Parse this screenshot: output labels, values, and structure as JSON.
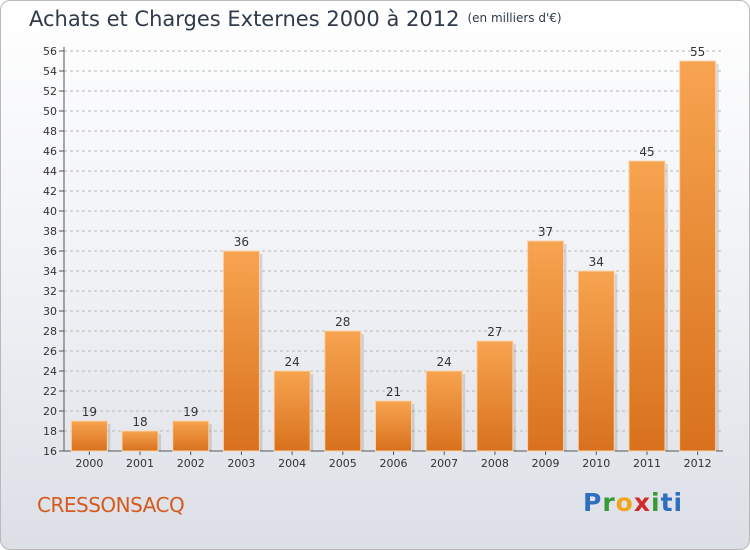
{
  "header": {
    "title": "Achats et Charges Externes 2000 à 2012",
    "subtitle": "(en milliers d'€)"
  },
  "footer": {
    "place": "CRESSONSACQ",
    "brand": [
      "P",
      "r",
      "o",
      "x",
      "i",
      "t",
      "i"
    ]
  },
  "colors": {
    "bar_top": "#f7a450",
    "bar_bottom": "#d8711d",
    "grid": "#b8b8b8",
    "title": "#2f3b4a",
    "place": "#d55a1c"
  },
  "chart_data": {
    "type": "bar",
    "title": "Achats et Charges Externes 2000 à 2012",
    "subtitle": "(en milliers d'€)",
    "xlabel": "",
    "ylabel": "",
    "categories": [
      "2000",
      "2001",
      "2002",
      "2003",
      "2004",
      "2005",
      "2006",
      "2007",
      "2008",
      "2009",
      "2010",
      "2011",
      "2012"
    ],
    "values": [
      19,
      18,
      19,
      36,
      24,
      28,
      21,
      24,
      27,
      37,
      34,
      45,
      55
    ],
    "ylim": [
      16,
      56
    ],
    "ytick_step": 2,
    "grid": true
  }
}
